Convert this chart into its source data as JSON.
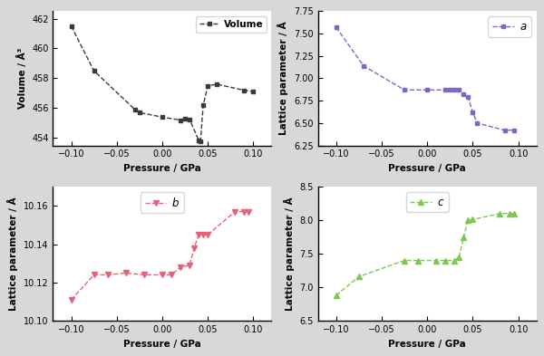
{
  "volume_pressure": [
    -0.1,
    -0.075,
    -0.03,
    -0.025,
    0.0,
    0.02,
    0.025,
    0.03,
    0.04,
    0.042,
    0.045,
    0.05,
    0.06,
    0.09,
    0.1
  ],
  "volume_values": [
    461.5,
    458.5,
    455.9,
    455.7,
    455.4,
    455.2,
    455.3,
    455.25,
    453.85,
    453.8,
    456.2,
    457.5,
    457.6,
    457.2,
    457.1
  ],
  "a_pressure": [
    -0.1,
    -0.07,
    -0.025,
    0.0,
    0.02,
    0.025,
    0.03,
    0.035,
    0.04,
    0.045,
    0.05,
    0.055,
    0.085,
    0.095
  ],
  "a_values": [
    7.57,
    7.14,
    6.87,
    6.87,
    6.87,
    6.87,
    6.87,
    6.87,
    6.82,
    6.79,
    6.62,
    6.5,
    6.42,
    6.42
  ],
  "b_pressure": [
    -0.1,
    -0.075,
    -0.06,
    -0.04,
    -0.02,
    0.0,
    0.01,
    0.02,
    0.03,
    0.035,
    0.04,
    0.045,
    0.05,
    0.08,
    0.09,
    0.095
  ],
  "b_values": [
    10.111,
    10.124,
    10.124,
    10.125,
    10.124,
    10.124,
    10.124,
    10.128,
    10.129,
    10.138,
    10.145,
    10.145,
    10.145,
    10.157,
    10.157,
    10.157
  ],
  "c_pressure": [
    -0.1,
    -0.075,
    -0.025,
    -0.01,
    0.01,
    0.02,
    0.03,
    0.035,
    0.04,
    0.045,
    0.05,
    0.08,
    0.09,
    0.095
  ],
  "c_values": [
    6.88,
    7.16,
    7.4,
    7.4,
    7.4,
    7.4,
    7.4,
    7.45,
    7.75,
    8.0,
    8.01,
    8.1,
    8.1,
    8.1
  ],
  "volume_color": "#3a3a3a",
  "a_color": "#7b68c8",
  "b_color": "#e8607a",
  "c_color": "#7ec850",
  "outer_bg": "#d8d8d8",
  "inner_bg": "#ffffff"
}
